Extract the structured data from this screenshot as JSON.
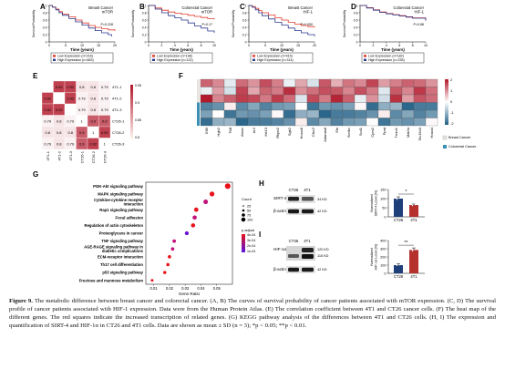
{
  "panels": {
    "A": {
      "letter": "A",
      "title_line1": "Breast Cancer",
      "title_line2": "mTOR",
      "pvalue": "P=0.228",
      "legend_low": "Low Expression (n=216)",
      "legend_high": "High Expression (n=663)",
      "km_low": [
        [
          0,
          1
        ],
        [
          1,
          0.96
        ],
        [
          2,
          0.9
        ],
        [
          3,
          0.83
        ],
        [
          4,
          0.76
        ],
        [
          6,
          0.69
        ],
        [
          8,
          0.6
        ],
        [
          10,
          0.52
        ],
        [
          12,
          0.45
        ],
        [
          14,
          0.4
        ],
        [
          16,
          0.36
        ],
        [
          18,
          0.33
        ],
        [
          20,
          0.3
        ]
      ],
      "km_high": [
        [
          0,
          1
        ],
        [
          1,
          0.95
        ],
        [
          2,
          0.88
        ],
        [
          3,
          0.8
        ],
        [
          4,
          0.73
        ],
        [
          6,
          0.64
        ],
        [
          8,
          0.55
        ],
        [
          10,
          0.46
        ],
        [
          12,
          0.38
        ],
        [
          14,
          0.31
        ],
        [
          16,
          0.25
        ],
        [
          18,
          0.2
        ],
        [
          19,
          0.15
        ]
      ]
    },
    "B": {
      "letter": "B",
      "title_line1": "Colorectal Cancer",
      "title_line2": "mTOR",
      "pvalue": "P=0.17",
      "legend_low": "Low Expression (n=198)",
      "legend_high": "High Expression (n=122)",
      "km_low": [
        [
          0,
          1
        ],
        [
          1,
          0.93
        ],
        [
          2,
          0.87
        ],
        [
          3,
          0.82
        ],
        [
          4,
          0.79
        ],
        [
          5,
          0.76
        ],
        [
          6,
          0.73
        ],
        [
          7,
          0.7
        ],
        [
          8,
          0.67
        ],
        [
          9,
          0.64
        ],
        [
          10,
          0.62
        ]
      ],
      "km_high": [
        [
          0,
          1
        ],
        [
          1,
          0.9
        ],
        [
          2,
          0.8
        ],
        [
          3,
          0.72
        ],
        [
          4,
          0.66
        ],
        [
          5,
          0.6
        ],
        [
          6,
          0.52
        ],
        [
          7,
          0.44
        ],
        [
          8,
          0.38
        ],
        [
          9,
          0.3
        ],
        [
          10,
          0.25
        ]
      ]
    },
    "C": {
      "letter": "C",
      "title_line1": "Breast Cancer",
      "title_line2": "HIF-1",
      "pvalue": "P=0.050",
      "legend_low": "Low Expression (n=415)",
      "legend_high": "High Expression (n=314)",
      "km_low": [
        [
          0,
          1
        ],
        [
          1,
          0.97
        ],
        [
          2,
          0.92
        ],
        [
          3,
          0.86
        ],
        [
          4,
          0.8
        ],
        [
          6,
          0.74
        ],
        [
          8,
          0.66
        ],
        [
          10,
          0.6
        ],
        [
          12,
          0.54
        ],
        [
          14,
          0.49
        ],
        [
          16,
          0.45
        ],
        [
          18,
          0.42
        ],
        [
          20,
          0.4
        ]
      ],
      "km_high": [
        [
          0,
          1
        ],
        [
          1,
          0.95
        ],
        [
          2,
          0.88
        ],
        [
          3,
          0.8
        ],
        [
          4,
          0.72
        ],
        [
          6,
          0.63
        ],
        [
          8,
          0.54
        ],
        [
          10,
          0.46
        ],
        [
          12,
          0.38
        ],
        [
          14,
          0.31
        ],
        [
          16,
          0.25
        ],
        [
          18,
          0.2
        ],
        [
          20,
          0.15
        ]
      ]
    },
    "D": {
      "letter": "D",
      "title_line1": "Colorectal Cancer",
      "title_line2": "HIF-1",
      "pvalue": "P=0.88",
      "legend_low": "Low Expression (n=182)",
      "legend_high": "High Expression (n=235)",
      "km_low": [
        [
          0,
          1
        ],
        [
          1,
          0.94
        ],
        [
          2,
          0.88
        ],
        [
          3,
          0.82
        ],
        [
          4,
          0.78
        ],
        [
          5,
          0.75
        ],
        [
          6,
          0.72
        ],
        [
          7,
          0.69
        ],
        [
          8,
          0.66
        ],
        [
          10,
          0.6
        ]
      ],
      "km_high": [
        [
          0,
          1
        ],
        [
          1,
          0.93
        ],
        [
          2,
          0.87
        ],
        [
          3,
          0.81
        ],
        [
          4,
          0.77
        ],
        [
          5,
          0.74
        ],
        [
          6,
          0.71
        ],
        [
          7,
          0.68
        ],
        [
          8,
          0.65
        ],
        [
          10,
          0.58
        ]
      ]
    }
  },
  "axis_common": {
    "ylabel": "Survival Probability",
    "xlabel": "Time (years)",
    "yticks": [
      "1",
      "0.8",
      "0.6",
      "0.4",
      "0.2",
      "0"
    ]
  },
  "xticks_20": [
    "0",
    "5",
    "10",
    "15",
    "20"
  ],
  "xticks_10": [
    "0",
    "2",
    "4",
    "6",
    "8",
    "10"
  ],
  "panel_E": {
    "letter": "E",
    "labels": [
      "4T1-1",
      "4T1-2",
      "4T1-3",
      "CT26-1",
      "CT26-2",
      "CT26-3"
    ],
    "matrix": [
      [
        1,
        0.92,
        0.92,
        0.8,
        0.8,
        0.79
      ],
      [
        0.92,
        1,
        0.92,
        0.79,
        0.8,
        0.79
      ],
      [
        0.92,
        0.92,
        1,
        0.79,
        0.8,
        0.79
      ],
      [
        0.79,
        0.8,
        0.79,
        1,
        0.9,
        0.9
      ],
      [
        0.8,
        0.8,
        0.8,
        0.9,
        1,
        0.92
      ],
      [
        0.79,
        0.8,
        0.79,
        0.9,
        0.92,
        1
      ]
    ],
    "display": [
      [
        "",
        "0.92",
        "0.92",
        "0.8",
        "0.8",
        "0.79"
      ],
      [
        "0.92",
        "",
        "0.92",
        "0.79",
        "0.8",
        "0.79"
      ],
      [
        "0.92",
        "0.92",
        "",
        "0.79",
        "0.8",
        "0.79"
      ],
      [
        "0.79",
        "0.8",
        "0.79",
        "1",
        "0.9",
        "0.9"
      ],
      [
        "0.8",
        "0.8",
        "0.8",
        "0.9",
        "1",
        "0.92"
      ],
      [
        "0.79",
        "0.8",
        "0.79",
        "0.9",
        "0.92",
        "1"
      ]
    ],
    "scale": [
      "0.95",
      "0.9",
      "0.85",
      "0.8"
    ]
  },
  "panel_F": {
    "letter": "F",
    "genes": [
      "Eif3",
      "Hgh2",
      "Tfdf",
      "Atoxc",
      "Ar2",
      "Krt13",
      "Rhpn2",
      "Sgk2",
      "Hoxa4l",
      "Cfxc2",
      "Adamts8",
      "Sfn",
      "Scribc",
      "Scd1",
      "Cpm2",
      "Ppat",
      "Tmm1",
      "Mat2a",
      "Slc19a3",
      "Hoxa4"
    ],
    "scale": [
      "2",
      "1",
      "0",
      "-1",
      "-2"
    ],
    "legend_breast": "Breast Cancer",
    "legend_colorectal": "Colorectal Cancer",
    "colors": {
      "breast": "#e8e4e0",
      "colorectal": "#3a8fb5"
    }
  },
  "panel_G": {
    "letter": "G",
    "chart_data": {
      "type": "scatter",
      "xlabel": "Gene Ratio",
      "xticks": [
        "0.01",
        "0.02",
        "0.03",
        "0.04",
        "0.05"
      ],
      "categories": [
        "PI3K-Akt signaling pathway",
        "MAPK signaling pathway",
        "Cytokine-cytokine receptor interaction",
        "Rap1 signaling pathway",
        "Focal adhesion",
        "Regulation of actin cytoskeleton",
        "Proteoglycans in cancer",
        "TNF signaling pathway",
        "AGE-RAGE signaling pathway in diabetic complications",
        "ECM-receptor interaction",
        "Th17 cell differentiation",
        "p53 signaling pathway",
        "Fructose and mannose metabolism"
      ],
      "gene_ratio": [
        0.057,
        0.047,
        0.043,
        0.037,
        0.036,
        0.035,
        0.031,
        0.023,
        0.022,
        0.02,
        0.019,
        0.017,
        0.009
      ],
      "count": [
        80,
        60,
        55,
        48,
        47,
        45,
        40,
        30,
        28,
        26,
        24,
        22,
        12
      ],
      "p_adjust": [
        0.0005,
        0.0002,
        0.0001,
        0.0003,
        0.0001,
        0.0003,
        1e-05,
        0.0001,
        0.0001,
        0.0002,
        0.001,
        0.0003,
        0.001
      ]
    },
    "count_label": "Count",
    "count_ticks": [
      "25",
      "50",
      "75",
      "100"
    ],
    "padj_label": "p.adjust",
    "padj_ticks": [
      "4e-04",
      "3e-04",
      "2e-04",
      "1e-04"
    ]
  },
  "panel_H": {
    "letter": "H",
    "lanes": [
      "CT26",
      "4T1"
    ],
    "bands": [
      {
        "name": "SIRT-4",
        "kd": "34 KD"
      },
      {
        "name": "β-actin",
        "kd": "42 KD"
      }
    ],
    "chart_data": {
      "type": "bar",
      "categories": [
        "CT26",
        "4T1"
      ],
      "values": [
        100,
        65
      ],
      "errors": [
        10,
        5
      ],
      "ylim": [
        0,
        150
      ],
      "ylabel": "Normalized SIRT-4 Level (%)",
      "yticks": [
        "150",
        "100",
        "50",
        "0"
      ]
    },
    "sig": "*"
  },
  "panel_I": {
    "letter": "I",
    "lanes": [
      "CT26",
      "4T1"
    ],
    "bands": [
      {
        "name": "HIF-1α",
        "kd1": "120 KD",
        "kd2": "116 KD"
      },
      {
        "name": "β-actin",
        "kd": "42 KD"
      }
    ],
    "chart_data": {
      "type": "bar",
      "categories": [
        "CT26",
        "4T1"
      ],
      "values": [
        100,
        285
      ],
      "errors": [
        15,
        25
      ],
      "ylim": [
        0,
        400
      ],
      "ylabel": "Normalized HIF-1α Level (%)",
      "yticks": [
        "400",
        "300",
        "200",
        "100",
        "0"
      ]
    },
    "sig": "**"
  },
  "caption": {
    "fig": "Figure 9.",
    "text": " The metabolic difference between breast cancer and colorectal cancer. (A, B) The curves of survival probability of cancer patients associated with mTOR expression. (C, D) The survival profile of cancer patients associated with HIF-1 expression. Data were from the Human Protein Atlas. (E) The correlation coefficient between 4T1 and CT26 cancer cells. (F) The heat map of the different genes. The red squares indicate the increased transcription of related genes. (G) KEGG pathway analysis of the differences between 4T1 and CT26 cells. (H, I) The expression and quantification of SIRT-4 and HIF-1α in CT26 and 4T1 cells. Data are shown as mean ± SD (n = 3); *p < 0.05; **p < 0.01."
  },
  "palette": {
    "low": "#e23a2a",
    "high": "#2b3a8f",
    "heat_hi": "#b2182b",
    "heat_lo": "#2a5f86",
    "bar": "#1f3f7a",
    "bar2": "#b5312c"
  }
}
